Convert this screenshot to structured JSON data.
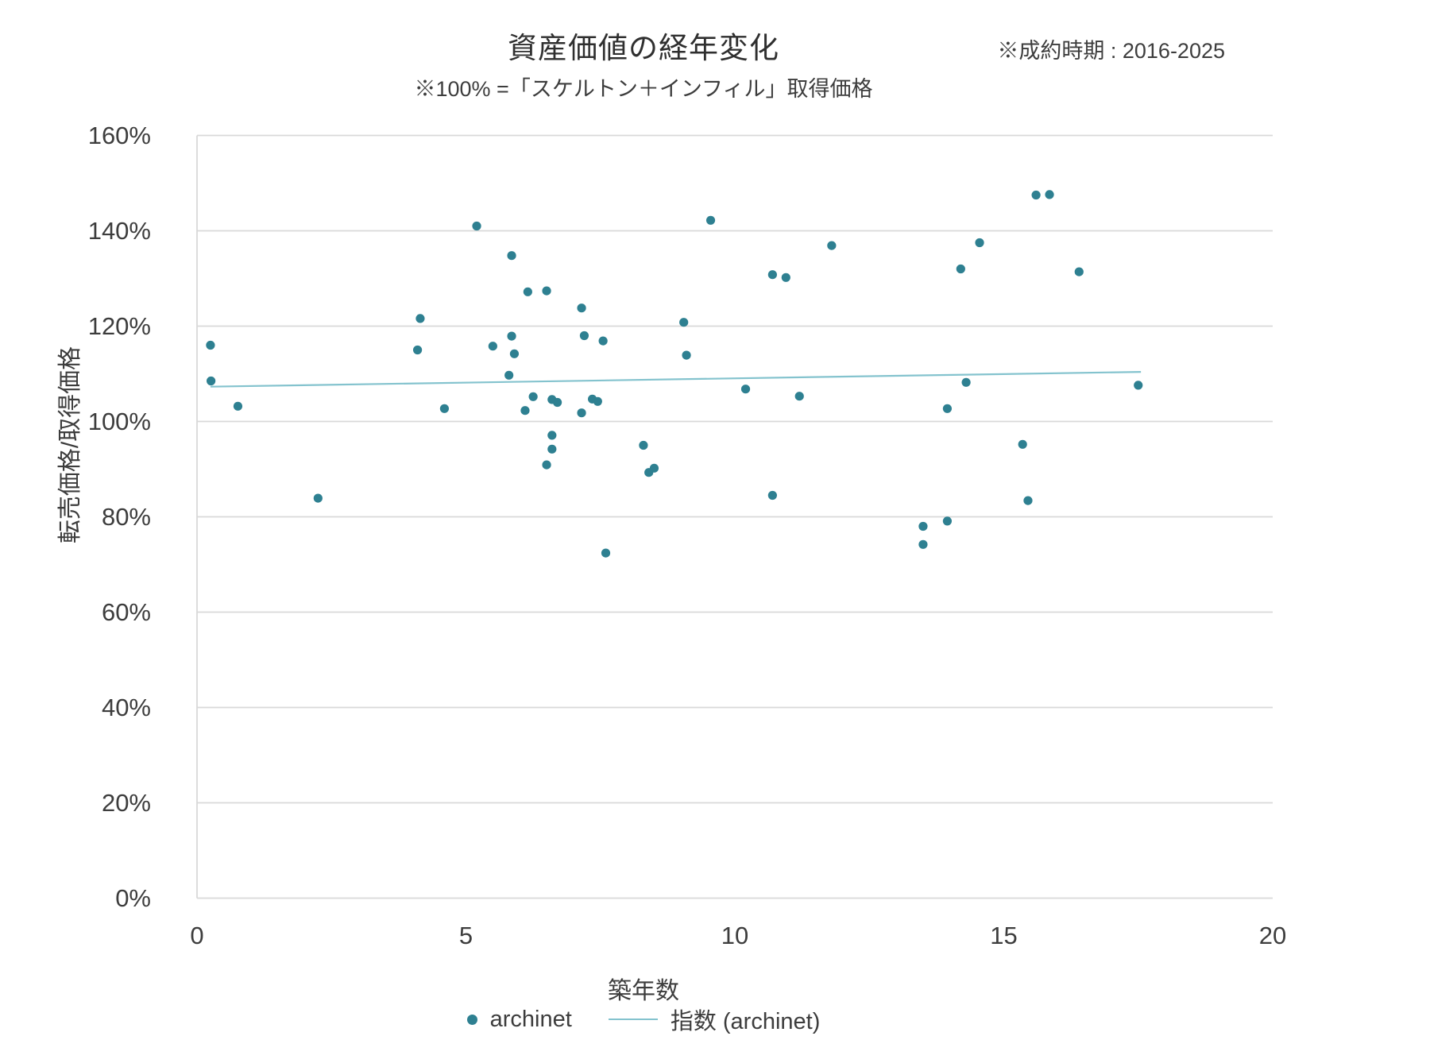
{
  "title": "資産価値の経年変化",
  "subtitle": "※100% =「スケルトン＋インフィル」取得価格",
  "note": "※成約時期 : 2016-2025",
  "colors": {
    "point": "#2E8091",
    "trendline": "#84C3CE",
    "gridline": "#D9D9D9",
    "text": "#3D3D3D"
  },
  "legend": {
    "series_label": "archinet",
    "trend_label": "指数 (archinet)"
  },
  "chart_data": {
    "type": "scatter",
    "title": "資産価値の経年変化",
    "xlabel": "築年数",
    "ylabel": "転売価格/取得価格",
    "xlim": [
      0,
      20
    ],
    "ylim_pct": [
      0,
      160
    ],
    "x_ticks": [
      0,
      5,
      10,
      15,
      20
    ],
    "x_tick_labels": [
      "0",
      "5",
      "10",
      "15",
      "20"
    ],
    "y_ticks_pct": [
      0,
      20,
      40,
      60,
      80,
      100,
      120,
      140,
      160
    ],
    "y_tick_labels": [
      "0%",
      "20%",
      "40%",
      "60%",
      "80%",
      "100%",
      "120%",
      "140%",
      "160%"
    ],
    "grid": "horizontal",
    "legend_position": "bottom",
    "series": [
      {
        "name": "archinet",
        "points_x_years_y_pct": [
          [
            0.25,
            116.0
          ],
          [
            0.26,
            108.5
          ],
          [
            0.76,
            103.2
          ],
          [
            2.25,
            83.9
          ],
          [
            4.1,
            115.0
          ],
          [
            4.15,
            121.6
          ],
          [
            4.6,
            102.7
          ],
          [
            5.2,
            141.0
          ],
          [
            5.5,
            115.8
          ],
          [
            5.8,
            109.7
          ],
          [
            5.85,
            134.8
          ],
          [
            5.85,
            117.9
          ],
          [
            5.9,
            114.2
          ],
          [
            6.1,
            102.3
          ],
          [
            6.15,
            127.2
          ],
          [
            6.25,
            105.2
          ],
          [
            6.5,
            127.4
          ],
          [
            6.5,
            90.9
          ],
          [
            6.6,
            97.1
          ],
          [
            6.6,
            94.2
          ],
          [
            6.6,
            104.6
          ],
          [
            6.7,
            104.0
          ],
          [
            7.15,
            123.8
          ],
          [
            7.15,
            101.8
          ],
          [
            7.2,
            118.0
          ],
          [
            7.35,
            104.7
          ],
          [
            7.45,
            104.2
          ],
          [
            7.55,
            116.9
          ],
          [
            7.6,
            72.4
          ],
          [
            8.3,
            95.0
          ],
          [
            8.4,
            89.3
          ],
          [
            8.5,
            90.2
          ],
          [
            9.05,
            120.8
          ],
          [
            9.1,
            113.9
          ],
          [
            9.55,
            142.2
          ],
          [
            10.2,
            106.8
          ],
          [
            10.7,
            130.8
          ],
          [
            10.7,
            84.5
          ],
          [
            10.95,
            130.2
          ],
          [
            11.2,
            105.3
          ],
          [
            11.8,
            136.9
          ],
          [
            13.5,
            74.2
          ],
          [
            13.5,
            78.0
          ],
          [
            13.95,
            79.1
          ],
          [
            13.95,
            102.7
          ],
          [
            14.2,
            132.0
          ],
          [
            14.3,
            108.2
          ],
          [
            14.55,
            137.5
          ],
          [
            15.35,
            95.2
          ],
          [
            15.45,
            83.4
          ],
          [
            15.6,
            147.5
          ],
          [
            15.85,
            147.6
          ],
          [
            16.4,
            131.4
          ],
          [
            17.5,
            107.6
          ]
        ]
      }
    ],
    "trendline": {
      "name": "指数 (archinet)",
      "type": "exponential",
      "x_start": 0.25,
      "y_start_pct": 107.3,
      "x_end": 17.55,
      "y_end_pct": 110.4
    }
  }
}
